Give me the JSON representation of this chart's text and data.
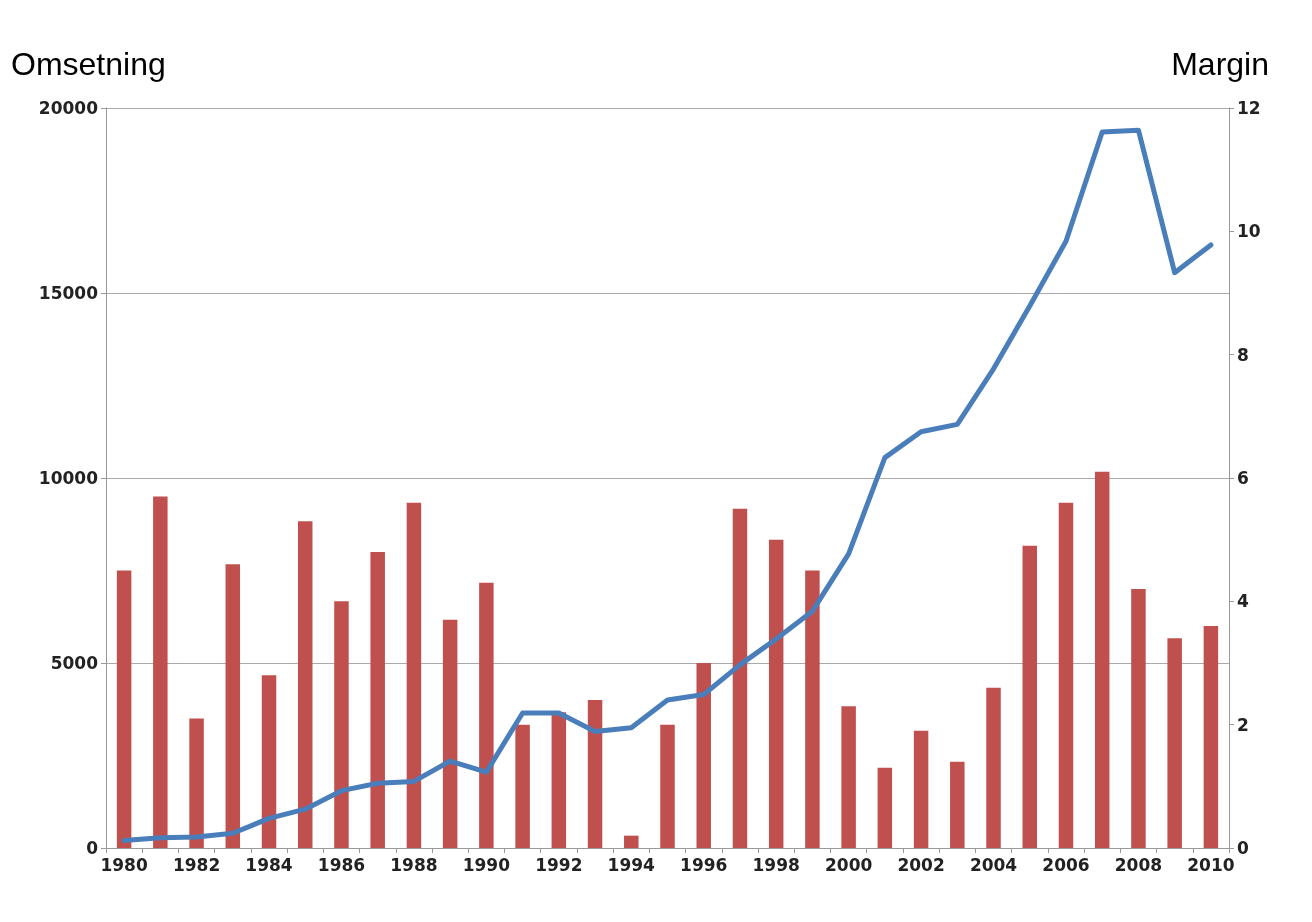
{
  "chart_data": {
    "type": "bar",
    "ylabel": "Omsetning",
    "y2label": "Margin",
    "categories": [
      "1980",
      null,
      "1982",
      null,
      "1984",
      null,
      "1986",
      null,
      "1988",
      null,
      "1990",
      null,
      "1992",
      null,
      "1994",
      null,
      "1996",
      null,
      "1998",
      null,
      "2000",
      null,
      "2002",
      null,
      "2004",
      null,
      "2006",
      null,
      "2008",
      null,
      "2010"
    ],
    "series": [
      {
        "axis": "y2",
        "color": "#c0504d",
        "values": [
          4.5,
          5.7,
          2.1,
          4.6,
          2.8,
          5.3,
          4.0,
          4.8,
          5.6,
          3.7,
          4.3,
          2.0,
          2.2,
          2.4,
          0.2,
          2.0,
          3.0,
          5.5,
          5.0,
          4.5,
          2.3,
          1.3,
          1.9,
          1.4,
          2.6,
          4.9,
          5.6,
          6.1,
          4.2,
          3.4,
          3.6
        ]
      },
      {
        "type": "line",
        "color": "#4a7ebb",
        "values": [
          200,
          280,
          300,
          400,
          800,
          1050,
          1550,
          1750,
          1800,
          2350,
          2050,
          3650,
          3650,
          3150,
          3250,
          4000,
          4150,
          4950,
          5650,
          6400,
          7950,
          10550,
          11250,
          11450,
          12950,
          14650,
          16400,
          19350,
          19400,
          15550,
          16300
        ]
      }
    ],
    "ylim": [
      0,
      20000
    ],
    "yticks": [
      0,
      5000,
      10000,
      15000,
      20000
    ],
    "y2lim": [
      0,
      12
    ],
    "y2ticks": [
      0,
      2,
      4,
      6,
      8,
      10,
      12
    ],
    "grid": "y",
    "marker": "none",
    "line_style": "solid"
  }
}
